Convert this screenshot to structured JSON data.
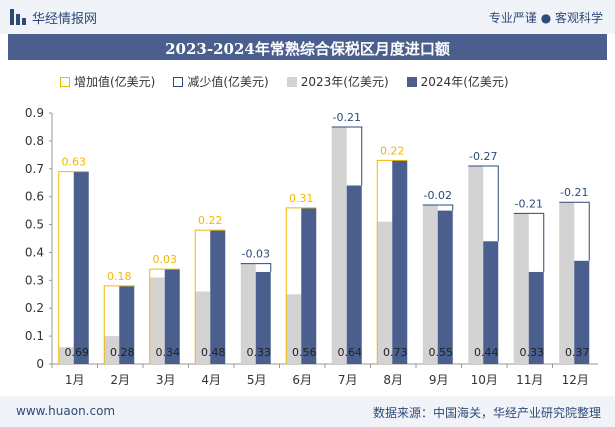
{
  "header": {
    "brand": "华经情报网",
    "tagline": "专业严谨 ● 客观科学"
  },
  "footer": {
    "site": "www.huaon.com",
    "source": "数据来源：中国海关，华经产业研究院整理"
  },
  "colors": {
    "series2023": "#d3d3d3",
    "series2024": "#4b5f8e",
    "increase": "#f2b800",
    "decrease": "#2d4a78",
    "title_band": "#4b5f8e"
  },
  "chart_data": {
    "type": "bar",
    "title": "2023-2024年常熟综合保税区月度进口额",
    "categories": [
      "1月",
      "2月",
      "3月",
      "4月",
      "5月",
      "6月",
      "7月",
      "8月",
      "9月",
      "10月",
      "11月",
      "12月"
    ],
    "series": [
      {
        "name": "2023年(亿美元)",
        "values": [
          0.06,
          0.1,
          0.31,
          0.26,
          0.36,
          0.25,
          0.85,
          0.51,
          0.57,
          0.71,
          0.54,
          0.58
        ]
      },
      {
        "name": "2024年(亿美元)",
        "values": [
          0.69,
          0.28,
          0.34,
          0.48,
          0.33,
          0.56,
          0.64,
          0.73,
          0.55,
          0.44,
          0.33,
          0.37
        ]
      }
    ],
    "changes": [
      0.63,
      0.18,
      0.03,
      0.22,
      -0.03,
      0.31,
      -0.21,
      0.22,
      -0.02,
      -0.27,
      -0.21,
      -0.21
    ],
    "change_labels": [
      "0.63",
      "0.18",
      "0.03",
      "0.22",
      "-0.03",
      "0.31",
      "-0.21",
      "0.22",
      "-0.02",
      "-0.27",
      "-0.21",
      "-0.21"
    ],
    "value_labels_2024": [
      "0.69",
      "0.28",
      "0.34",
      "0.48",
      "0.33",
      "0.56",
      "0.64",
      "0.73",
      "0.55",
      "0.44",
      "0.33",
      "0.37"
    ],
    "legend": [
      "增加值(亿美元)",
      "减少值(亿美元)",
      "2023年(亿美元)",
      "2024年(亿美元)"
    ],
    "legend_position": "top",
    "ylim": [
      0,
      0.9
    ],
    "yticks": [
      "0",
      "0.1",
      "0.2",
      "0.3",
      "0.4",
      "0.5",
      "0.6",
      "0.7",
      "0.8",
      "0.9"
    ],
    "grid": false
  }
}
